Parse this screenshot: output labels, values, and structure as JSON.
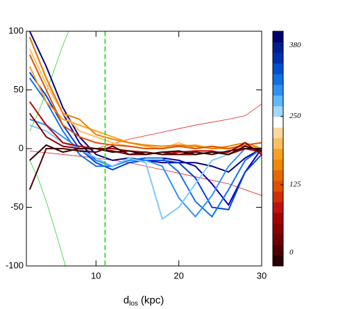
{
  "chart_data": {
    "type": "line",
    "x_label": {
      "main": "d",
      "subscript": "los",
      "unit": "(kpc)"
    },
    "x": [
      2,
      4,
      6,
      8,
      10,
      12,
      14,
      16,
      18,
      20,
      22,
      24,
      26,
      28,
      30
    ],
    "xlim": [
      1.6,
      30
    ],
    "xticks": [
      10,
      20,
      30
    ],
    "ylim": [
      -100,
      100
    ],
    "yticks": [
      -100,
      -50,
      0,
      50,
      100
    ],
    "series": [
      {
        "color": "#000080",
        "values": [
          100,
          70,
          35,
          10,
          -5,
          -10,
          -8,
          -10,
          -12,
          -12,
          -12,
          -15,
          -20,
          -8,
          0
        ]
      },
      {
        "color": "#0000c0",
        "values": [
          95,
          60,
          30,
          5,
          -10,
          -15,
          -10,
          -8,
          -8,
          -10,
          -15,
          -30,
          -48,
          -20,
          0
        ]
      },
      {
        "color": "#0040e0",
        "values": [
          65,
          45,
          20,
          0,
          -12,
          -18,
          -12,
          -10,
          -10,
          -12,
          -25,
          -50,
          -52,
          -20,
          -5
        ]
      },
      {
        "color": "#1070f0",
        "values": [
          60,
          40,
          15,
          -5,
          -15,
          -15,
          -10,
          -8,
          -8,
          -20,
          -45,
          -58,
          -35,
          -10,
          0
        ]
      },
      {
        "color": "#3090ff",
        "values": [
          25,
          20,
          10,
          0,
          -10,
          -15,
          -10,
          -10,
          -15,
          -42,
          -58,
          -40,
          -15,
          0,
          0
        ]
      },
      {
        "color": "#80c8ff",
        "values": [
          20,
          15,
          5,
          0,
          -8,
          -15,
          -8,
          -12,
          -60,
          -50,
          -30,
          -10,
          -5,
          0,
          0
        ]
      },
      {
        "color": "#ffc060",
        "values": [
          85,
          55,
          30,
          15,
          10,
          5,
          2,
          0,
          0,
          5,
          0,
          2,
          0,
          0,
          0
        ]
      },
      {
        "color": "#ffa020",
        "values": [
          70,
          40,
          25,
          20,
          15,
          10,
          5,
          2,
          0,
          2,
          3,
          0,
          0,
          2,
          0
        ]
      },
      {
        "color": "#f08000",
        "values": [
          95,
          60,
          30,
          25,
          12,
          8,
          5,
          3,
          2,
          3,
          2,
          0,
          2,
          5,
          0
        ]
      },
      {
        "color": "#e05000",
        "values": [
          80,
          50,
          20,
          10,
          5,
          3,
          2,
          0,
          0,
          2,
          0,
          2,
          0,
          3,
          5
        ]
      },
      {
        "color": "#c00000",
        "values": [
          40,
          20,
          5,
          2,
          0,
          0,
          -2,
          -3,
          -5,
          -3,
          -2,
          -2,
          -5,
          0,
          -3
        ]
      },
      {
        "color": "#8b0000",
        "values": [
          30,
          10,
          2,
          0,
          0,
          -2,
          -5,
          -5,
          -3,
          -5,
          -5,
          -3,
          -3,
          5,
          -5
        ]
      },
      {
        "color": "#500000",
        "values": [
          -35,
          0,
          0,
          -2,
          -3,
          2,
          -5,
          -3,
          -5,
          -5,
          -3,
          -5,
          -2,
          0,
          0
        ]
      },
      {
        "color": "#2a0000",
        "values": [
          -10,
          3,
          -3,
          0,
          0,
          -3,
          -2,
          -5,
          -3,
          -2,
          -5,
          -3,
          -5,
          2,
          -2
        ]
      }
    ],
    "guide_curves": [
      {
        "color": "#e02020",
        "x": [
          8,
          10,
          14,
          18,
          22,
          26,
          28,
          30
        ],
        "values": [
          -3,
          0,
          8,
          14,
          20,
          25,
          28,
          38
        ]
      },
      {
        "color": "#e02020",
        "x": [
          2,
          6,
          10,
          14,
          18,
          22,
          26,
          30
        ],
        "values": [
          -2,
          -5,
          -8,
          -12,
          -18,
          -24,
          -30,
          -40
        ]
      },
      {
        "color": "#30d030",
        "x": [
          2,
          3,
          4,
          5,
          6,
          6.7
        ],
        "values": [
          15,
          30,
          48,
          68,
          88,
          100
        ]
      },
      {
        "color": "#30d030",
        "x": [
          2,
          3,
          4,
          5,
          6,
          6.3
        ],
        "values": [
          -10,
          -25,
          -45,
          -68,
          -92,
          -100
        ]
      }
    ],
    "vline": {
      "x": 11.1,
      "color": "#00dd00"
    },
    "colorbar": {
      "lim": [
        -24,
        406
      ],
      "ticks": [
        0,
        125,
        250,
        380
      ],
      "colors": [
        "#2a0000",
        "#500000",
        "#6e0000",
        "#8b0000",
        "#a50000",
        "#c01010",
        "#d03000",
        "#e05000",
        "#e86800",
        "#f08800",
        "#f8a020",
        "#f8c060",
        "#ffd8a0",
        "#ffffff",
        "#a0d8ff",
        "#60b8ff",
        "#3090f0",
        "#1070e0",
        "#0050d0",
        "#0030b0",
        "#002090",
        "#000070"
      ]
    }
  }
}
